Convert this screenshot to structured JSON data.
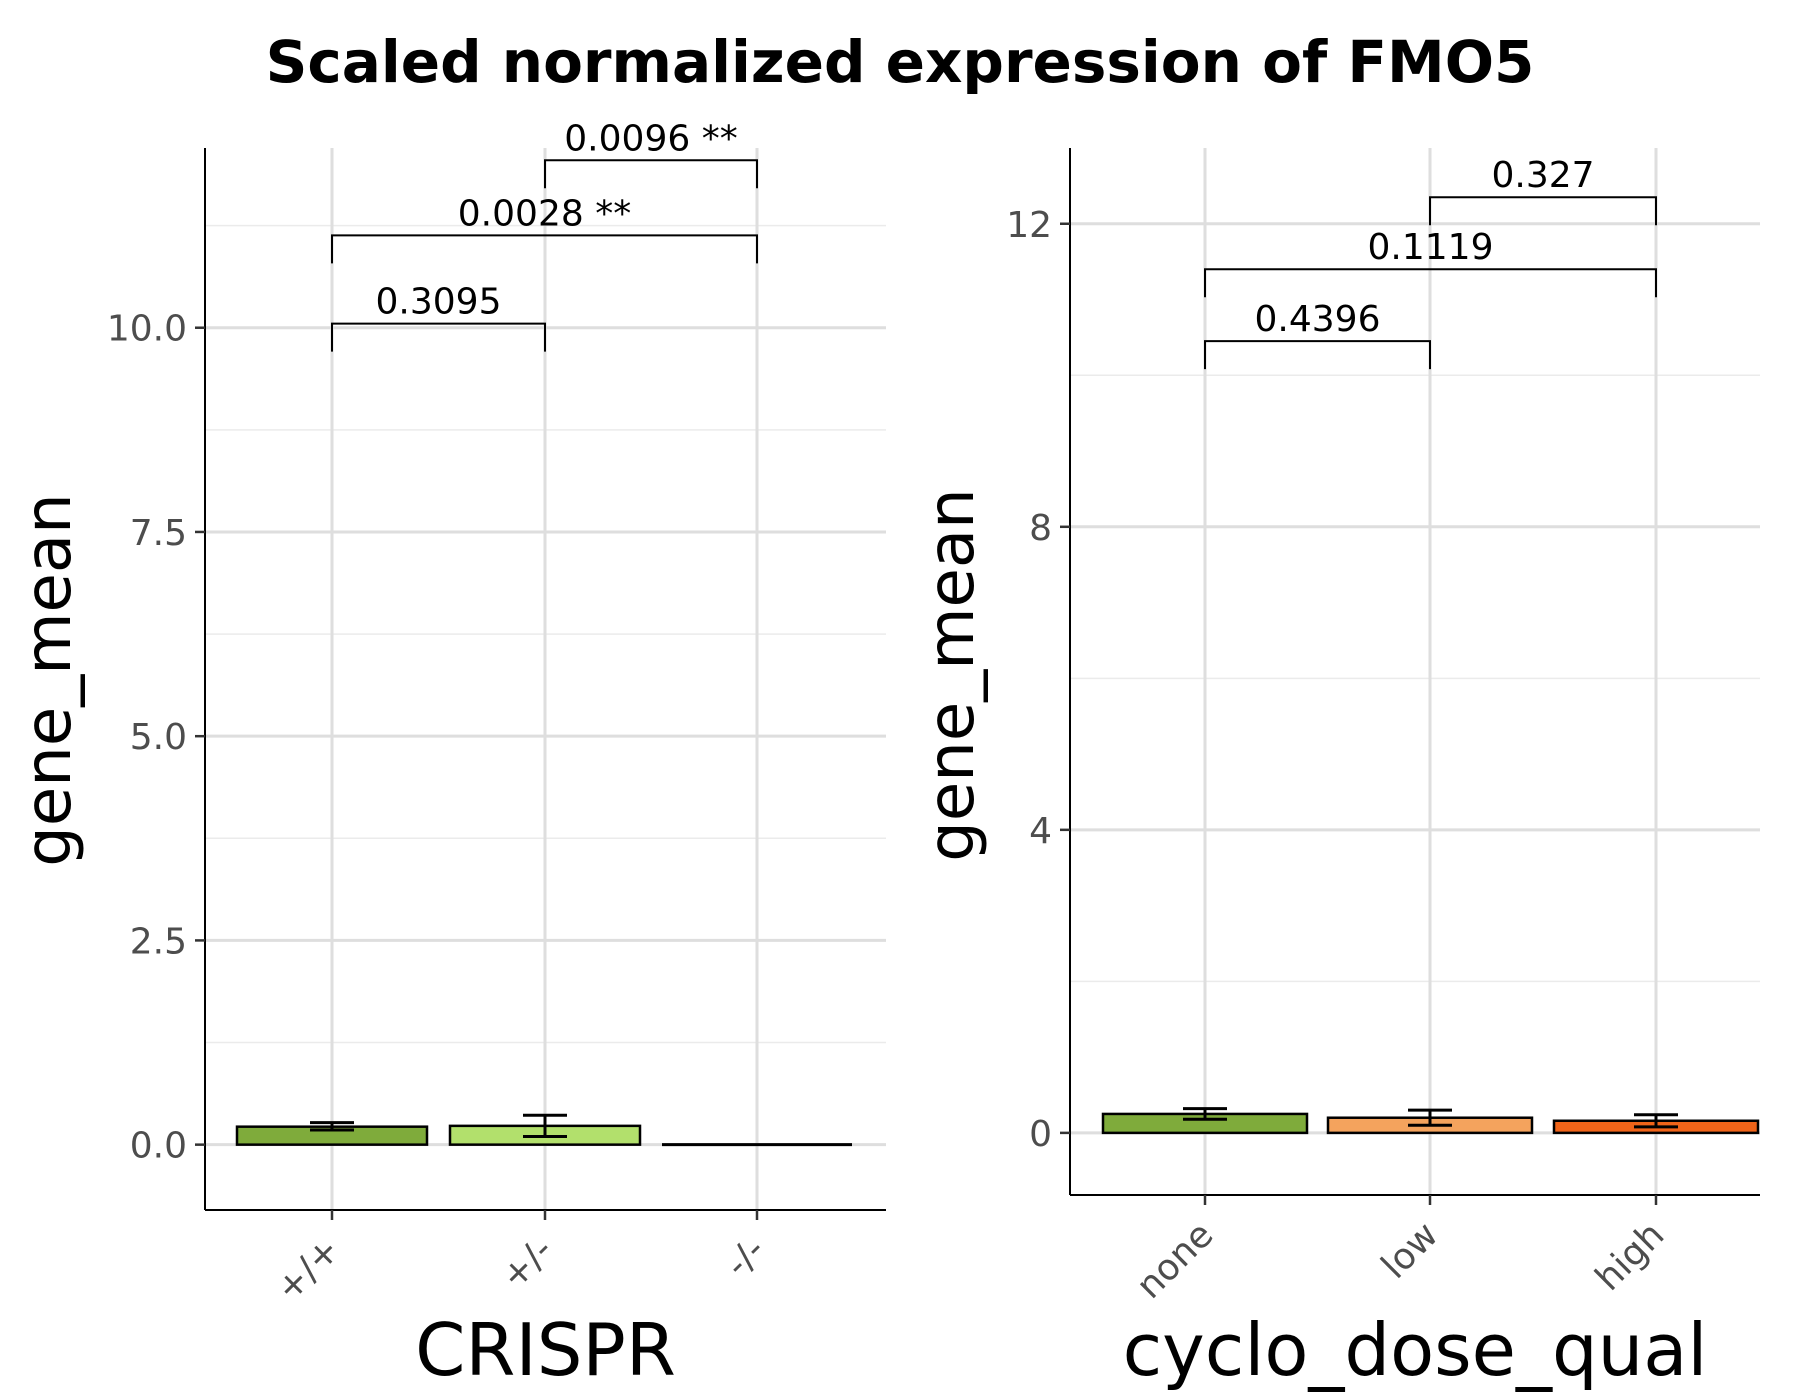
{
  "title": "Scaled normalized expression of FMO5",
  "chart_data": [
    {
      "type": "bar",
      "xlabel": "CRISPR",
      "ylabel": "gene_mean",
      "categories": [
        "+/+",
        "+/-",
        "-/-"
      ],
      "values": [
        0.22,
        0.23,
        0.0
      ],
      "error_low": [
        0.18,
        0.1,
        0.0
      ],
      "error_high": [
        0.27,
        0.36,
        0.0
      ],
      "colors": [
        "#7fab3b",
        "#b2e06c",
        "#000000"
      ],
      "ylim": [
        -0.8,
        12.2
      ],
      "yticks": [
        0.0,
        2.5,
        5.0,
        7.5,
        10.0
      ],
      "ytick_labels": [
        "0.0",
        "2.5",
        "5.0",
        "7.5",
        "10.0"
      ],
      "grid": true,
      "comparisons": [
        {
          "from": 0,
          "to": 1,
          "y": 10.05,
          "label": "0.3095"
        },
        {
          "from": 0,
          "to": 2,
          "y": 11.13,
          "label": "0.0028 **"
        },
        {
          "from": 1,
          "to": 2,
          "y": 12.05,
          "label": "0.0096 **"
        }
      ]
    },
    {
      "type": "bar",
      "xlabel": "cyclo_dose_qual",
      "ylabel": "gene_mean",
      "categories": [
        "none",
        "low",
        "high"
      ],
      "values": [
        0.25,
        0.2,
        0.16
      ],
      "error_low": [
        0.18,
        0.1,
        0.08
      ],
      "error_high": [
        0.32,
        0.3,
        0.24
      ],
      "colors": [
        "#7fab3b",
        "#f4a35d",
        "#f06419"
      ],
      "ylim": [
        -0.82,
        13.0
      ],
      "yticks": [
        0,
        4,
        8,
        12
      ],
      "ytick_labels": [
        "0",
        "4",
        "8",
        "12"
      ],
      "grid": true,
      "comparisons": [
        {
          "from": 0,
          "to": 1,
          "y": 10.45,
          "label": "0.4396"
        },
        {
          "from": 0,
          "to": 2,
          "y": 11.4,
          "label": "0.1119"
        },
        {
          "from": 1,
          "to": 2,
          "y": 12.35,
          "label": "0.327"
        }
      ]
    }
  ]
}
